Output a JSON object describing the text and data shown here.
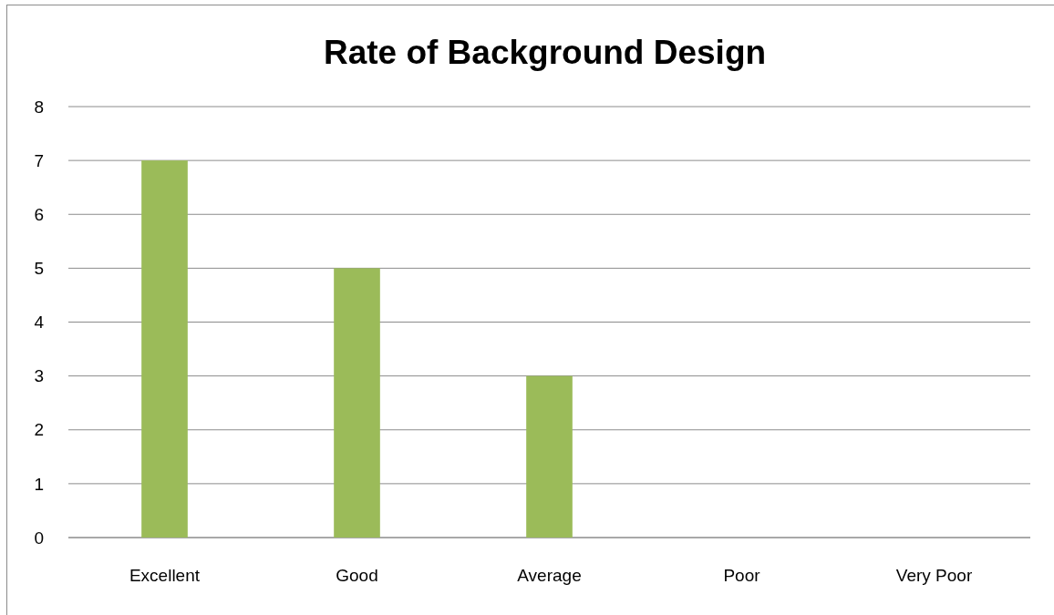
{
  "chart_data": {
    "type": "bar",
    "title": "Rate of Background Design",
    "categories": [
      "Excellent",
      "Good",
      "Average",
      "Poor",
      "Very Poor"
    ],
    "values": [
      7,
      5,
      3,
      0,
      0
    ],
    "color": "#9bbb59",
    "ylim": [
      0,
      8
    ],
    "yticks": [
      0,
      1,
      2,
      3,
      4,
      5,
      6,
      7,
      8
    ],
    "grid": "y"
  }
}
